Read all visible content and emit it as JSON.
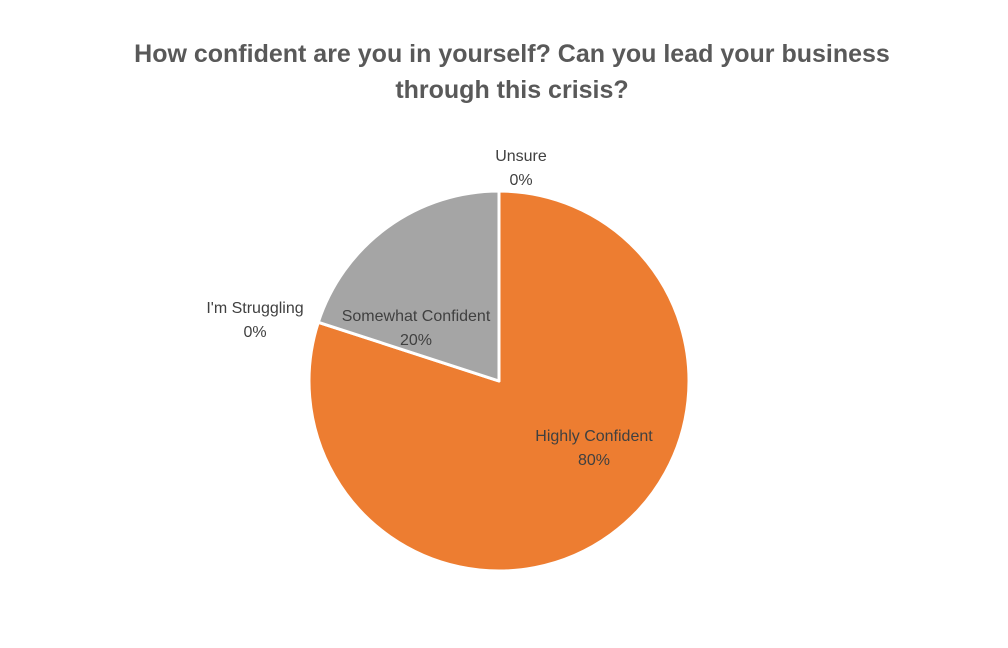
{
  "chart_data": {
    "type": "pie",
    "title_lines": [
      "How confident are you in yourself? Can you lead your business",
      "through this crisis?"
    ],
    "categories": [
      "Highly Confident",
      "Somewhat Confident",
      "I'm Struggling",
      "Unsure"
    ],
    "values": [
      80,
      20,
      0,
      0
    ],
    "value_labels": [
      "80%",
      "20%",
      "0%",
      "0%"
    ],
    "colors": [
      "#ED7D31",
      "#A5A5A5",
      "#4472C4",
      "#FFC000"
    ],
    "start_angle": "12 o'clock",
    "direction": "clockwise",
    "legend": "none"
  }
}
